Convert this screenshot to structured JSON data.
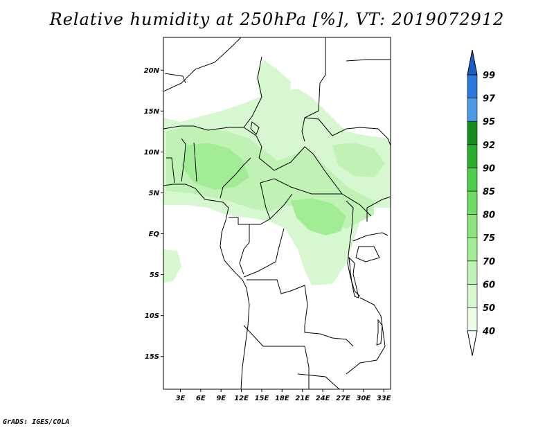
{
  "title": "Relative humidity at 250hPa [%], VT: 2019072912",
  "credit": "GrADS: IGES/COLA",
  "map": {
    "lat_range": [
      -19,
      24
    ],
    "lon_range": [
      0.5,
      34
    ],
    "lat_ticks": [
      {
        "value": 20,
        "label": "20N"
      },
      {
        "value": 15,
        "label": "15N"
      },
      {
        "value": 10,
        "label": "10N"
      },
      {
        "value": 5,
        "label": "5N"
      },
      {
        "value": 0,
        "label": "EQ"
      },
      {
        "value": -5,
        "label": "5S"
      },
      {
        "value": -10,
        "label": "10S"
      },
      {
        "value": -15,
        "label": "15S"
      }
    ],
    "lon_ticks": [
      {
        "value": 3,
        "label": "3E"
      },
      {
        "value": 6,
        "label": "6E"
      },
      {
        "value": 9,
        "label": "9E"
      },
      {
        "value": 12,
        "label": "12E"
      },
      {
        "value": 15,
        "label": "15E"
      },
      {
        "value": 18,
        "label": "18E"
      },
      {
        "value": 21,
        "label": "21E"
      },
      {
        "value": 24,
        "label": "24E"
      },
      {
        "value": 27,
        "label": "27E"
      },
      {
        "value": 30,
        "label": "30E"
      },
      {
        "value": 33,
        "label": "33E"
      }
    ]
  },
  "colorbar": {
    "levels": [
      "40",
      "50",
      "60",
      "70",
      "75",
      "80",
      "85",
      "90",
      "92",
      "95",
      "97",
      "99"
    ],
    "colors": [
      "#eafbe6",
      "#d6f7cf",
      "#bff2b4",
      "#a3ec96",
      "#8ce57c",
      "#6fdb63",
      "#4fcd4c",
      "#2aae2e",
      "#168e1f",
      "#4d9be8",
      "#2a78de",
      "#1c5ec8"
    ],
    "below_color": "#ffffff",
    "above_color": "#1c5ec8"
  },
  "colors": {
    "humid_light": "#d6f7cf",
    "humid_mid": "#bff2b4",
    "humid_dark": "#a3ec96"
  }
}
